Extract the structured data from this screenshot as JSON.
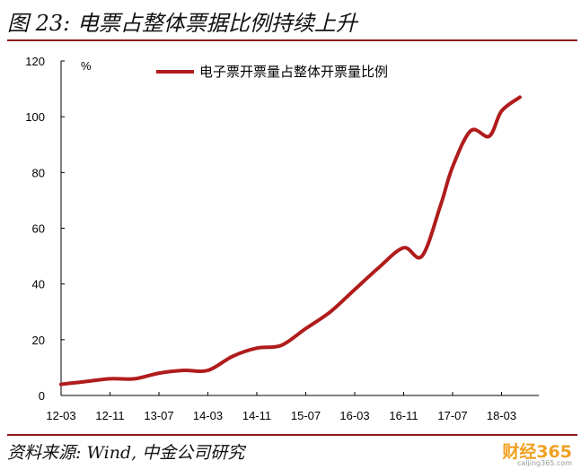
{
  "header": {
    "title": "图 23:  电票占整体票据比例持续上升"
  },
  "footer": {
    "source": "资料来源:   Wind,  中金公司研究"
  },
  "watermark": {
    "brand": "财经365",
    "sub": "caijing365.com"
  },
  "colors": {
    "accent": "#8b1a1a",
    "line": "#b01c1c"
  },
  "chart_data": {
    "type": "line",
    "title": "",
    "ylabel": "%",
    "xlabel": "",
    "ylim": [
      0,
      120
    ],
    "y_ticks": [
      0,
      20,
      40,
      60,
      80,
      100,
      120
    ],
    "x_ticks": [
      "12-03",
      "12-11",
      "13-07",
      "14-03",
      "14-11",
      "15-07",
      "16-03",
      "16-11",
      "17-07",
      "18-03"
    ],
    "legend": "top-center",
    "grid": false,
    "series": [
      {
        "name": "电子票开票量占整体开票量比例",
        "x": [
          "12-03",
          "12-07",
          "12-11",
          "13-03",
          "13-07",
          "13-11",
          "14-03",
          "14-07",
          "14-11",
          "15-03",
          "15-07",
          "15-11",
          "16-03",
          "16-07",
          "16-11",
          "17-02",
          "17-05",
          "17-07",
          "17-10",
          "18-01",
          "18-03",
          "18-06"
        ],
        "values": [
          4,
          5,
          6,
          6,
          8,
          9,
          9,
          14,
          17,
          18,
          24,
          30,
          38,
          46,
          53,
          50,
          68,
          82,
          95,
          93,
          102,
          107
        ]
      }
    ]
  }
}
